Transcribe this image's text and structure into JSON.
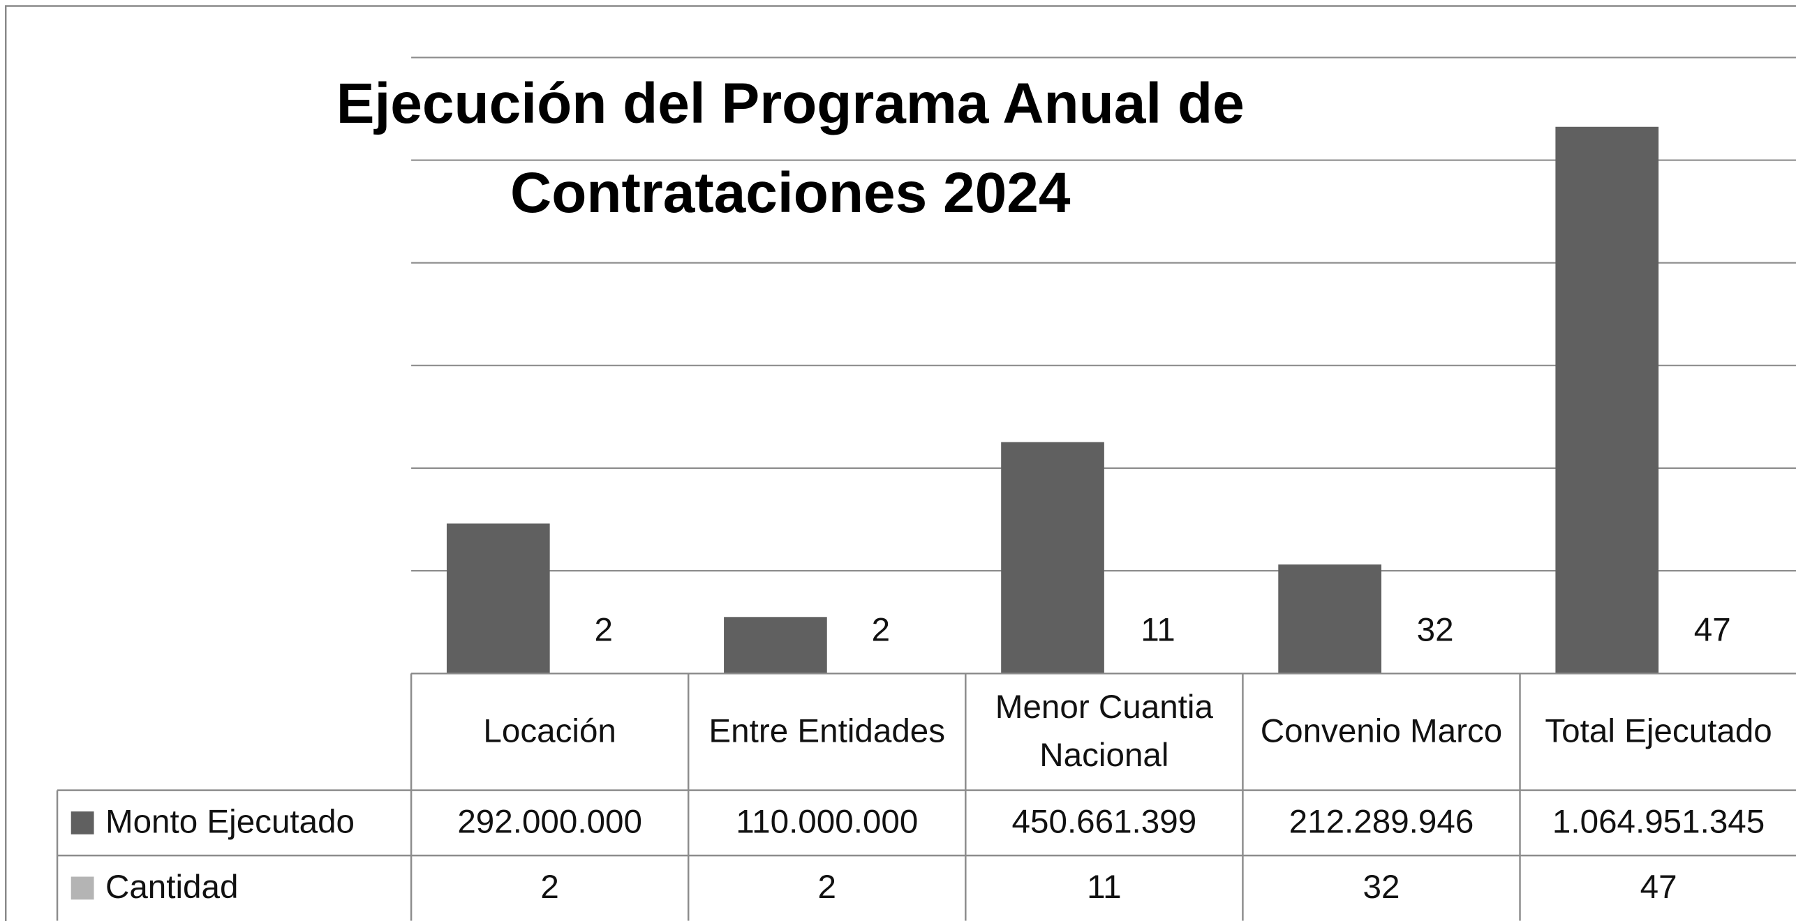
{
  "chart_data": {
    "type": "bar",
    "title": "Ejecución del Programa Anual de Contrataciones 2024",
    "categories": [
      "Locación",
      "Entre Entidades",
      "Menor Cuantia Nacional",
      "Convenio Marco",
      "Total Ejecutado"
    ],
    "series": [
      {
        "name": "Monto Ejecutado",
        "color": "#606060",
        "values": [
          292000000,
          110000000,
          450661399,
          212289946,
          1064951345
        ],
        "value_labels": [
          "292.000.000",
          "110.000.000",
          "450.661.399",
          "212.289.946",
          "1.064.951.345"
        ]
      },
      {
        "name": "Cantidad",
        "color": "#b4b4b4",
        "values": [
          2,
          2,
          11,
          32,
          47
        ]
      }
    ],
    "ylim": [
      0,
      1200000000
    ],
    "yticks": [
      0,
      200000000,
      400000000,
      600000000,
      800000000,
      1000000000,
      1200000000
    ],
    "grid": true
  }
}
